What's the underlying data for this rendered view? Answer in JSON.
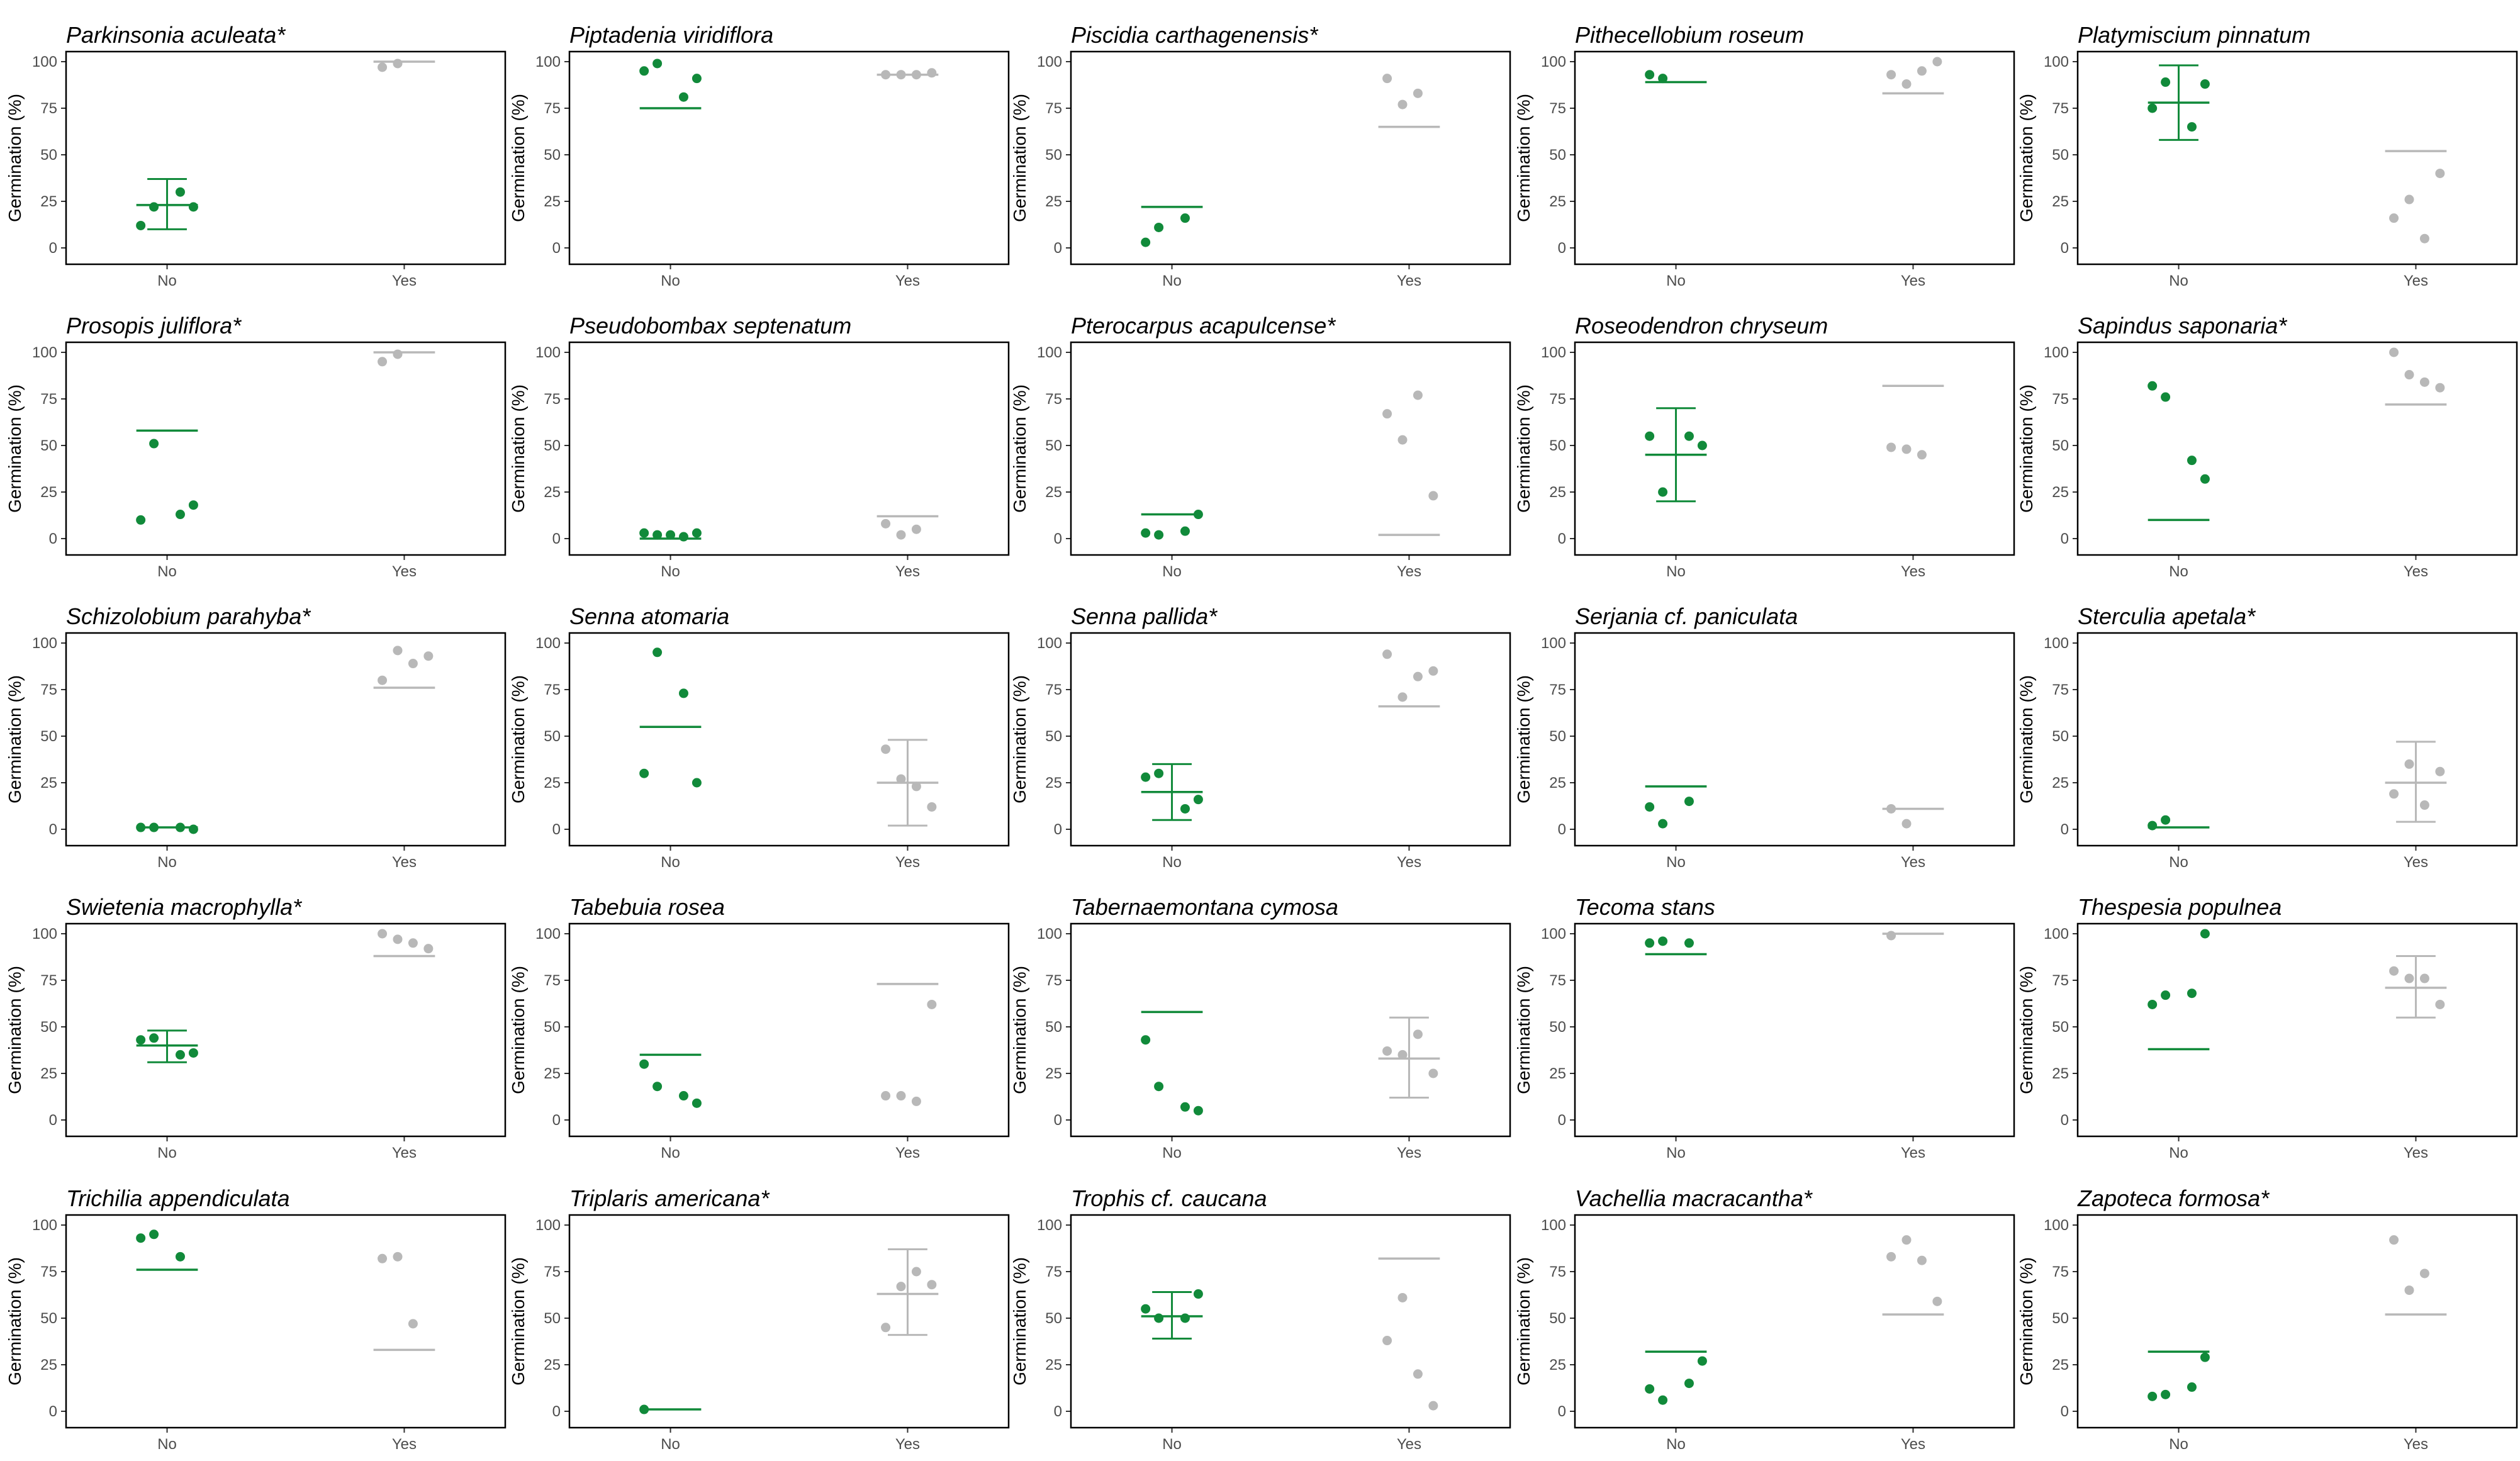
{
  "colors": {
    "no": "#118a3a",
    "yes": "#b8b8b8"
  },
  "figure": {
    "ylabel": "Germination (%)",
    "xcats": [
      "No",
      "Yes"
    ],
    "yticks": [
      "0",
      "25",
      "50",
      "75",
      "100"
    ]
  },
  "chart_data": [
    {
      "type": "scatter",
      "title": "Parkinsonia aculeata*",
      "xlabel": "",
      "ylabel": "Germination (%)",
      "ylim": [
        0,
        100
      ],
      "categories": [
        "No",
        "Yes"
      ],
      "series": [
        {
          "name": "No",
          "points": [
            12,
            22,
            30,
            22
          ],
          "mean": 23,
          "err": [
            10,
            37
          ]
        },
        {
          "name": "Yes",
          "points": [
            97,
            99
          ],
          "mean": 100,
          "err": null
        }
      ]
    },
    {
      "type": "scatter",
      "title": "Piptadenia viridiflora",
      "xlabel": "",
      "ylabel": "Germination (%)",
      "ylim": [
        0,
        100
      ],
      "categories": [
        "No",
        "Yes"
      ],
      "series": [
        {
          "name": "No",
          "points": [
            95,
            99,
            81,
            91
          ],
          "mean": 75,
          "err": null
        },
        {
          "name": "Yes",
          "points": [
            93,
            93,
            93,
            94
          ],
          "mean": 93,
          "err": null
        }
      ]
    },
    {
      "type": "scatter",
      "title": "Piscidia carthagenensis*",
      "xlabel": "",
      "ylabel": "Germination (%)",
      "ylim": [
        0,
        100
      ],
      "categories": [
        "No",
        "Yes"
      ],
      "series": [
        {
          "name": "No",
          "points": [
            3,
            11,
            16
          ],
          "mean": 22,
          "err": null
        },
        {
          "name": "Yes",
          "points": [
            91,
            77,
            83
          ],
          "mean": 65,
          "err": null
        }
      ]
    },
    {
      "type": "scatter",
      "title": "Pithecellobium roseum",
      "xlabel": "",
      "ylabel": "Germination (%)",
      "ylim": [
        0,
        100
      ],
      "categories": [
        "No",
        "Yes"
      ],
      "series": [
        {
          "name": "No",
          "points": [
            93,
            91
          ],
          "mean": 89,
          "err": null
        },
        {
          "name": "Yes",
          "points": [
            93,
            88,
            95,
            100
          ],
          "mean": 83,
          "err": null
        }
      ]
    },
    {
      "type": "scatter",
      "title": "Platymiscium pinnatum",
      "xlabel": "",
      "ylabel": "Germination (%)",
      "ylim": [
        0,
        100
      ],
      "categories": [
        "No",
        "Yes"
      ],
      "series": [
        {
          "name": "No",
          "points": [
            75,
            89,
            65,
            88
          ],
          "mean": 78,
          "err": [
            58,
            98
          ]
        },
        {
          "name": "Yes",
          "points": [
            16,
            26,
            5,
            40
          ],
          "mean": 52,
          "err": null
        }
      ]
    },
    {
      "type": "scatter",
      "title": "Prosopis juliflora*",
      "xlabel": "",
      "ylabel": "Germination (%)",
      "ylim": [
        0,
        100
      ],
      "categories": [
        "No",
        "Yes"
      ],
      "series": [
        {
          "name": "No",
          "points": [
            10,
            51,
            13,
            18
          ],
          "mean": 58,
          "err": null
        },
        {
          "name": "Yes",
          "points": [
            95,
            99
          ],
          "mean": 100,
          "err": null
        }
      ]
    },
    {
      "type": "scatter",
      "title": "Pseudobombax septenatum",
      "xlabel": "",
      "ylabel": "Germination (%)",
      "ylim": [
        0,
        100
      ],
      "categories": [
        "No",
        "Yes"
      ],
      "series": [
        {
          "name": "No",
          "points": [
            3,
            2,
            1,
            3,
            2
          ],
          "mean": 0,
          "err": null
        },
        {
          "name": "Yes",
          "points": [
            8,
            2,
            5
          ],
          "mean": 12,
          "err": null
        }
      ]
    },
    {
      "type": "scatter",
      "title": "Pterocarpus acapulcense*",
      "xlabel": "",
      "ylabel": "Germination (%)",
      "ylim": [
        0,
        100
      ],
      "categories": [
        "No",
        "Yes"
      ],
      "series": [
        {
          "name": "No",
          "points": [
            3,
            2,
            4,
            13
          ],
          "mean": 13,
          "err": null
        },
        {
          "name": "Yes",
          "points": [
            67,
            53,
            77,
            23
          ],
          "mean": 2,
          "err": null
        }
      ]
    },
    {
      "type": "scatter",
      "title": "Roseodendron chryseum",
      "xlabel": "",
      "ylabel": "Germination (%)",
      "ylim": [
        0,
        100
      ],
      "categories": [
        "No",
        "Yes"
      ],
      "series": [
        {
          "name": "No",
          "points": [
            55,
            25,
            55,
            50
          ],
          "mean": 45,
          "err": [
            20,
            70
          ]
        },
        {
          "name": "Yes",
          "points": [
            49,
            48,
            45
          ],
          "mean": 82,
          "err": null
        }
      ]
    },
    {
      "type": "scatter",
      "title": "Sapindus saponaria*",
      "xlabel": "",
      "ylabel": "Germination (%)",
      "ylim": [
        0,
        100
      ],
      "categories": [
        "No",
        "Yes"
      ],
      "series": [
        {
          "name": "No",
          "points": [
            82,
            76,
            42,
            32
          ],
          "mean": 10,
          "err": null
        },
        {
          "name": "Yes",
          "points": [
            100,
            88,
            84,
            81
          ],
          "mean": 72,
          "err": null
        }
      ]
    },
    {
      "type": "scatter",
      "title": "Schizolobium parahyba*",
      "xlabel": "",
      "ylabel": "Germination (%)",
      "ylim": [
        0,
        100
      ],
      "categories": [
        "No",
        "Yes"
      ],
      "series": [
        {
          "name": "No",
          "points": [
            1,
            1,
            1,
            0
          ],
          "mean": 1,
          "err": null
        },
        {
          "name": "Yes",
          "points": [
            80,
            96,
            89,
            93
          ],
          "mean": 76,
          "err": null
        }
      ]
    },
    {
      "type": "scatter",
      "title": "Senna atomaria",
      "xlabel": "",
      "ylabel": "Germination (%)",
      "ylim": [
        0,
        100
      ],
      "categories": [
        "No",
        "Yes"
      ],
      "series": [
        {
          "name": "No",
          "points": [
            30,
            95,
            73,
            25
          ],
          "mean": 55,
          "err": null
        },
        {
          "name": "Yes",
          "points": [
            43,
            27,
            23,
            12
          ],
          "mean": 25,
          "err": [
            2,
            48
          ]
        }
      ]
    },
    {
      "type": "scatter",
      "title": "Senna pallida*",
      "xlabel": "",
      "ylabel": "Germination (%)",
      "ylim": [
        0,
        100
      ],
      "categories": [
        "No",
        "Yes"
      ],
      "series": [
        {
          "name": "No",
          "points": [
            28,
            30,
            11,
            16
          ],
          "mean": 20,
          "err": [
            5,
            35
          ]
        },
        {
          "name": "Yes",
          "points": [
            94,
            71,
            82,
            85
          ],
          "mean": 66,
          "err": null
        }
      ]
    },
    {
      "type": "scatter",
      "title": "Serjania cf. paniculata",
      "xlabel": "",
      "ylabel": "Germination (%)",
      "ylim": [
        0,
        100
      ],
      "categories": [
        "No",
        "Yes"
      ],
      "series": [
        {
          "name": "No",
          "points": [
            12,
            3,
            15
          ],
          "mean": 23,
          "err": null
        },
        {
          "name": "Yes",
          "points": [
            11,
            3
          ],
          "mean": 11,
          "err": null
        }
      ]
    },
    {
      "type": "scatter",
      "title": "Sterculia apetala*",
      "xlabel": "",
      "ylabel": "Germination (%)",
      "ylim": [
        0,
        100
      ],
      "categories": [
        "No",
        "Yes"
      ],
      "series": [
        {
          "name": "No",
          "points": [
            2,
            5
          ],
          "mean": 1,
          "err": null
        },
        {
          "name": "Yes",
          "points": [
            19,
            35,
            13,
            31
          ],
          "mean": 25,
          "err": [
            4,
            47
          ]
        }
      ]
    },
    {
      "type": "scatter",
      "title": "Swietenia macrophylla*",
      "xlabel": "",
      "ylabel": "Germination (%)",
      "ylim": [
        0,
        100
      ],
      "categories": [
        "No",
        "Yes"
      ],
      "series": [
        {
          "name": "No",
          "points": [
            43,
            44,
            35,
            36
          ],
          "mean": 40,
          "err": [
            31,
            48
          ]
        },
        {
          "name": "Yes",
          "points": [
            100,
            97,
            95,
            92
          ],
          "mean": 88,
          "err": null
        }
      ]
    },
    {
      "type": "scatter",
      "title": "Tabebuia rosea",
      "xlabel": "",
      "ylabel": "Germination (%)",
      "ylim": [
        0,
        100
      ],
      "categories": [
        "No",
        "Yes"
      ],
      "series": [
        {
          "name": "No",
          "points": [
            30,
            18,
            13,
            9
          ],
          "mean": 35,
          "err": null
        },
        {
          "name": "Yes",
          "points": [
            13,
            13,
            10,
            62
          ],
          "mean": 73,
          "err": null
        }
      ]
    },
    {
      "type": "scatter",
      "title": "Tabernaemontana cymosa",
      "xlabel": "",
      "ylabel": "Germination (%)",
      "ylim": [
        0,
        100
      ],
      "categories": [
        "No",
        "Yes"
      ],
      "series": [
        {
          "name": "No",
          "points": [
            43,
            18,
            7,
            5
          ],
          "mean": 58,
          "err": null
        },
        {
          "name": "Yes",
          "points": [
            37,
            35,
            46,
            25
          ],
          "mean": 33,
          "err": [
            12,
            55
          ]
        }
      ]
    },
    {
      "type": "scatter",
      "title": "Tecoma stans",
      "xlabel": "",
      "ylabel": "Germination (%)",
      "ylim": [
        0,
        100
      ],
      "categories": [
        "No",
        "Yes"
      ],
      "series": [
        {
          "name": "No",
          "points": [
            95,
            96,
            95
          ],
          "mean": 89,
          "err": null
        },
        {
          "name": "Yes",
          "points": [
            99
          ],
          "mean": 100,
          "err": null
        }
      ]
    },
    {
      "type": "scatter",
      "title": "Thespesia populnea",
      "xlabel": "",
      "ylabel": "Germination (%)",
      "ylim": [
        0,
        100
      ],
      "categories": [
        "No",
        "Yes"
      ],
      "series": [
        {
          "name": "No",
          "points": [
            62,
            67,
            68,
            100
          ],
          "mean": 38,
          "err": null
        },
        {
          "name": "Yes",
          "points": [
            80,
            76,
            76,
            62
          ],
          "mean": 71,
          "err": [
            55,
            88
          ]
        }
      ]
    },
    {
      "type": "scatter",
      "title": "Trichilia appendiculata",
      "xlabel": "",
      "ylabel": "Germination (%)",
      "ylim": [
        0,
        100
      ],
      "categories": [
        "No",
        "Yes"
      ],
      "series": [
        {
          "name": "No",
          "points": [
            93,
            95,
            83
          ],
          "mean": 76,
          "err": null
        },
        {
          "name": "Yes",
          "points": [
            82,
            83,
            47
          ],
          "mean": 33,
          "err": null
        }
      ]
    },
    {
      "type": "scatter",
      "title": "Triplaris americana*",
      "xlabel": "",
      "ylabel": "Germination (%)",
      "ylim": [
        0,
        100
      ],
      "categories": [
        "No",
        "Yes"
      ],
      "series": [
        {
          "name": "No",
          "points": [
            1
          ],
          "mean": 1,
          "err": null
        },
        {
          "name": "Yes",
          "points": [
            45,
            67,
            75,
            68
          ],
          "mean": 63,
          "err": [
            41,
            87
          ]
        }
      ]
    },
    {
      "type": "scatter",
      "title": "Trophis cf. caucana",
      "xlabel": "",
      "ylabel": "Germination (%)",
      "ylim": [
        0,
        100
      ],
      "categories": [
        "No",
        "Yes"
      ],
      "series": [
        {
          "name": "No",
          "points": [
            55,
            50,
            50,
            63
          ],
          "mean": 51,
          "err": [
            39,
            64
          ]
        },
        {
          "name": "Yes",
          "points": [
            38,
            61,
            20,
            3
          ],
          "mean": 82,
          "err": null
        }
      ]
    },
    {
      "type": "scatter",
      "title": "Vachellia macracantha*",
      "xlabel": "",
      "ylabel": "Germination (%)",
      "ylim": [
        0,
        100
      ],
      "categories": [
        "No",
        "Yes"
      ],
      "series": [
        {
          "name": "No",
          "points": [
            12,
            6,
            15,
            27
          ],
          "mean": 32,
          "err": null
        },
        {
          "name": "Yes",
          "points": [
            83,
            92,
            81,
            59
          ],
          "mean": 52,
          "err": null
        }
      ]
    },
    {
      "type": "scatter",
      "title": "Zapoteca formosa*",
      "xlabel": "",
      "ylabel": "Germination (%)",
      "ylim": [
        0,
        100
      ],
      "categories": [
        "No",
        "Yes"
      ],
      "series": [
        {
          "name": "No",
          "points": [
            8,
            9,
            13,
            29
          ],
          "mean": 32,
          "err": null
        },
        {
          "name": "Yes",
          "points": [
            92,
            65,
            74
          ],
          "mean": 52,
          "err": null
        }
      ]
    }
  ]
}
